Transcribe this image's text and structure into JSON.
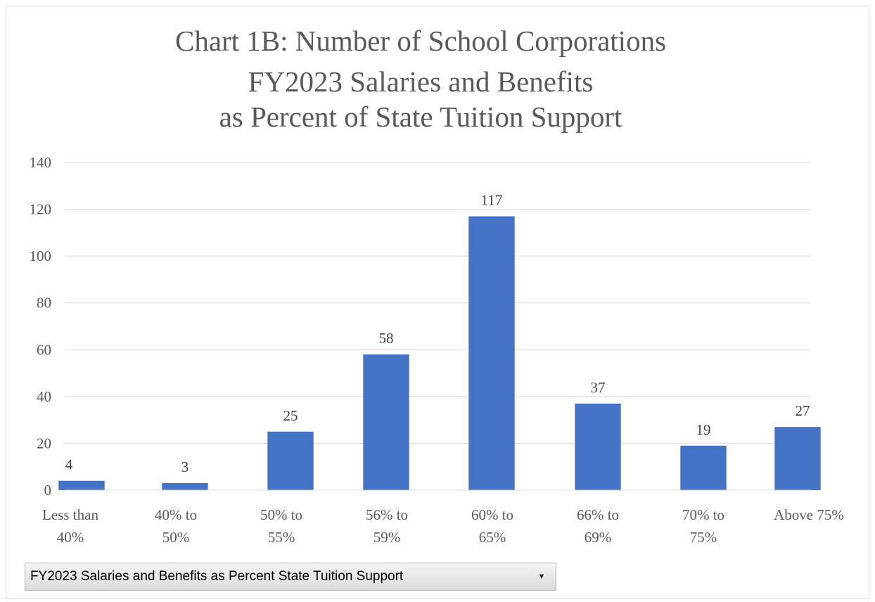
{
  "chart_data": {
    "type": "bar",
    "title_lines": [
      "Chart 1B: Number of School Corporations",
      "FY2023 Salaries and Benefits",
      "as Percent of State Tuition Support"
    ],
    "categories": [
      [
        "Less than",
        "40%"
      ],
      [
        "40% to",
        "50%"
      ],
      [
        "50% to",
        "55%"
      ],
      [
        "56% to",
        "59%"
      ],
      [
        "60% to",
        "65%"
      ],
      [
        "66% to",
        "69%"
      ],
      [
        "70% to",
        "75%"
      ],
      [
        "Above 75%"
      ]
    ],
    "values": [
      4,
      3,
      25,
      58,
      117,
      37,
      19,
      27
    ],
    "data_labels": [
      "4",
      "3",
      "25",
      "58",
      "117",
      "37",
      "19",
      "27"
    ],
    "ylim": [
      0,
      140
    ],
    "yticks": [
      0,
      20,
      40,
      60,
      80,
      100,
      120,
      140
    ],
    "grid": true,
    "legend": "none",
    "bar_color": "#4472c4",
    "grid_color": "#d9d9d9",
    "xlabel": "",
    "ylabel": ""
  },
  "field_button": {
    "label": "FY2023 Salaries and Benefits as Percent State Tuition Support",
    "icon": "dropdown-arrow-icon",
    "arrow": "▼"
  }
}
